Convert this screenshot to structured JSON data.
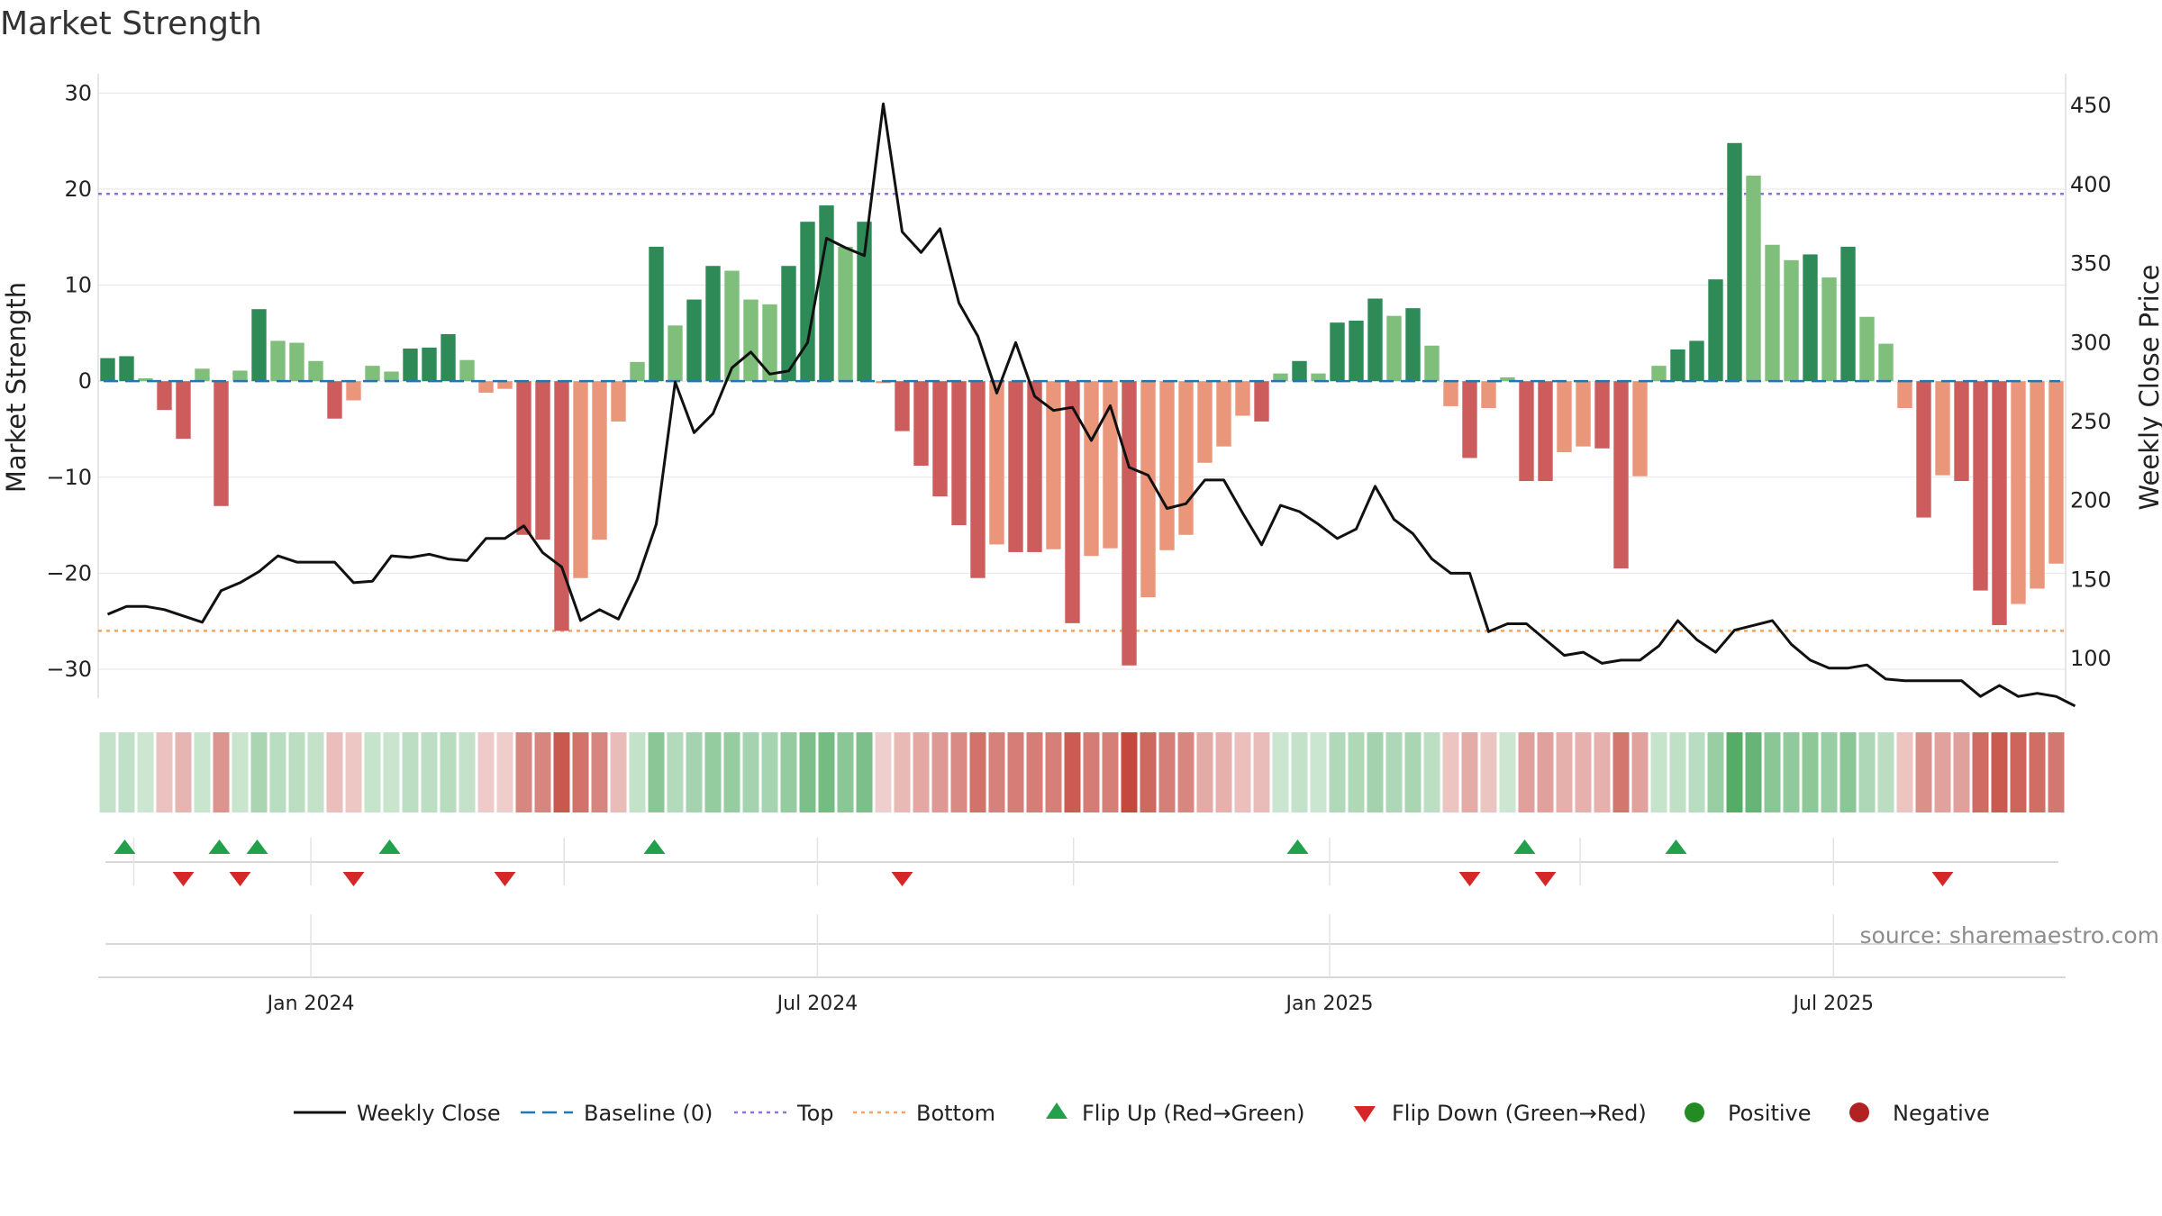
{
  "chart_data": {
    "type": "bar",
    "title": "Market Strength",
    "ylabel_left": "Market Strength",
    "ylabel_right": "Weekly Close Price",
    "ylim_left": [
      -33,
      32
    ],
    "ylim_right": [
      75,
      470
    ],
    "yticks_left": [
      30,
      20,
      10,
      0,
      -10,
      -20,
      -30
    ],
    "ytick_labels_left": [
      "30",
      "20",
      "10",
      "0",
      "−10",
      "−20",
      "−30"
    ],
    "yticks_right": [
      450,
      400,
      350,
      300,
      250,
      200,
      150,
      100
    ],
    "x_start": "2023-10-20",
    "x_end": "2025-09-19",
    "xtick_dates": [
      "2024-01-01",
      "2024-07-01",
      "2025-01-01",
      "2025-07-01"
    ],
    "xtick_labels": [
      "Jan 2024",
      "Jul 2024",
      "Jan 2025",
      "Jul 2025"
    ],
    "top_line": 19.5,
    "bottom_line": -26,
    "baseline": 0,
    "strength": [
      2.4,
      2.6,
      0.3,
      -3,
      -6,
      1.3,
      -13,
      1.1,
      7.5,
      4.2,
      4,
      2.1,
      -3.9,
      -2,
      1.6,
      1,
      3.4,
      3.5,
      4.9,
      2.2,
      -1.2,
      -0.8,
      -16,
      -16.5,
      -26,
      -20.5,
      -16.5,
      -4.2,
      2,
      14,
      5.8,
      8.5,
      12,
      11.5,
      8.5,
      8,
      12,
      16.6,
      18.3,
      14,
      16.6,
      -0.2,
      -5.2,
      -8.8,
      -12,
      -15,
      -20.5,
      -17,
      -17.8,
      -17.8,
      -17.5,
      -25.2,
      -18.2,
      -17.4,
      -29.6,
      -22.5,
      -17.6,
      -16,
      -8.5,
      -6.8,
      -3.6,
      -4.2,
      0.8,
      2.1,
      0.8,
      6.1,
      6.3,
      8.6,
      6.8,
      7.6,
      3.7,
      -2.6,
      -8,
      -2.8,
      0.4,
      -10.4,
      -10.4,
      -7.4,
      -6.8,
      -7,
      -19.5,
      -9.9,
      1.6,
      3.3,
      4.2,
      10.6,
      24.8,
      21.4,
      14.2,
      12.6,
      13.2,
      10.8,
      14,
      6.7,
      3.9,
      -2.8,
      -14.2,
      -9.8,
      -10.4,
      -21.8,
      -25.4,
      -23.2,
      -21.6,
      -19
    ],
    "weekly_close": [
      128,
      133,
      133,
      131,
      127,
      123,
      143,
      148,
      155,
      165,
      161,
      161,
      161,
      148,
      149,
      165,
      164,
      166,
      163,
      162,
      176,
      176,
      184,
      167,
      158,
      124,
      131,
      125,
      150,
      185,
      275,
      243,
      255,
      284,
      294,
      280,
      282,
      300,
      366,
      360,
      355,
      451,
      370,
      357,
      372,
      325,
      304,
      268,
      300,
      266,
      257,
      259,
      238,
      260,
      221,
      216,
      195,
      198,
      213,
      213,
      192,
      172,
      197,
      193,
      185,
      176,
      182,
      209,
      188,
      179,
      163,
      154,
      154,
      117,
      122,
      122,
      112,
      102,
      104,
      97,
      99,
      99,
      108,
      124,
      112,
      104,
      118,
      121,
      124,
      109,
      99,
      94,
      94,
      96,
      87,
      86,
      86,
      86,
      86,
      76,
      83,
      76,
      78,
      76,
      70
    ],
    "regime_sign": [
      1,
      1,
      1,
      -1,
      -1,
      1,
      -1,
      1,
      1,
      1,
      1,
      1,
      -1,
      -1,
      1,
      1,
      1,
      1,
      1,
      1,
      -1,
      -1,
      -1,
      -1,
      -1,
      -1,
      -1,
      -1,
      1,
      1,
      1,
      1,
      1,
      1,
      1,
      1,
      1,
      1,
      1,
      1,
      1,
      -1,
      -1,
      -1,
      -1,
      -1,
      -1,
      -1,
      -1,
      -1,
      -1,
      -1,
      -1,
      -1,
      -1,
      -1,
      -1,
      -1,
      -1,
      -1,
      -1,
      -1,
      1,
      1,
      1,
      1,
      1,
      1,
      1,
      1,
      1,
      -1,
      -1,
      -1,
      1,
      -1,
      -1,
      -1,
      -1,
      -1,
      -1,
      -1,
      1,
      1,
      1,
      1,
      1,
      1,
      1,
      1,
      1,
      1,
      1,
      1,
      1,
      -1,
      -1,
      -1,
      -1,
      -1,
      -1,
      -1,
      -1,
      -1
    ],
    "flip_up_indices": [
      1,
      6,
      8,
      15,
      29,
      63,
      75,
      83
    ],
    "flip_down_indices": [
      4,
      7,
      13,
      21,
      42,
      72,
      76,
      97
    ],
    "legend": [
      "Weekly Close",
      "Baseline (0)",
      "Top",
      "Bottom",
      "Flip Up (Red→Green)",
      "Flip Down (Green→Red)",
      "Positive",
      "Negative"
    ],
    "source": "source: sharemaestro.com",
    "colors": {
      "pos_strong": "#2e8b57",
      "pos_light": "#7fbf7b",
      "neg_strong": "#cd5c5c",
      "neg_light": "#e9967a",
      "close_line": "#111111",
      "baseline": "#1f77b4",
      "top": "#9370db",
      "bottom": "#f4a460",
      "flip_up": "#22a04b",
      "flip_down": "#d62728",
      "positive": "#228b22",
      "negative": "#b22222"
    }
  }
}
